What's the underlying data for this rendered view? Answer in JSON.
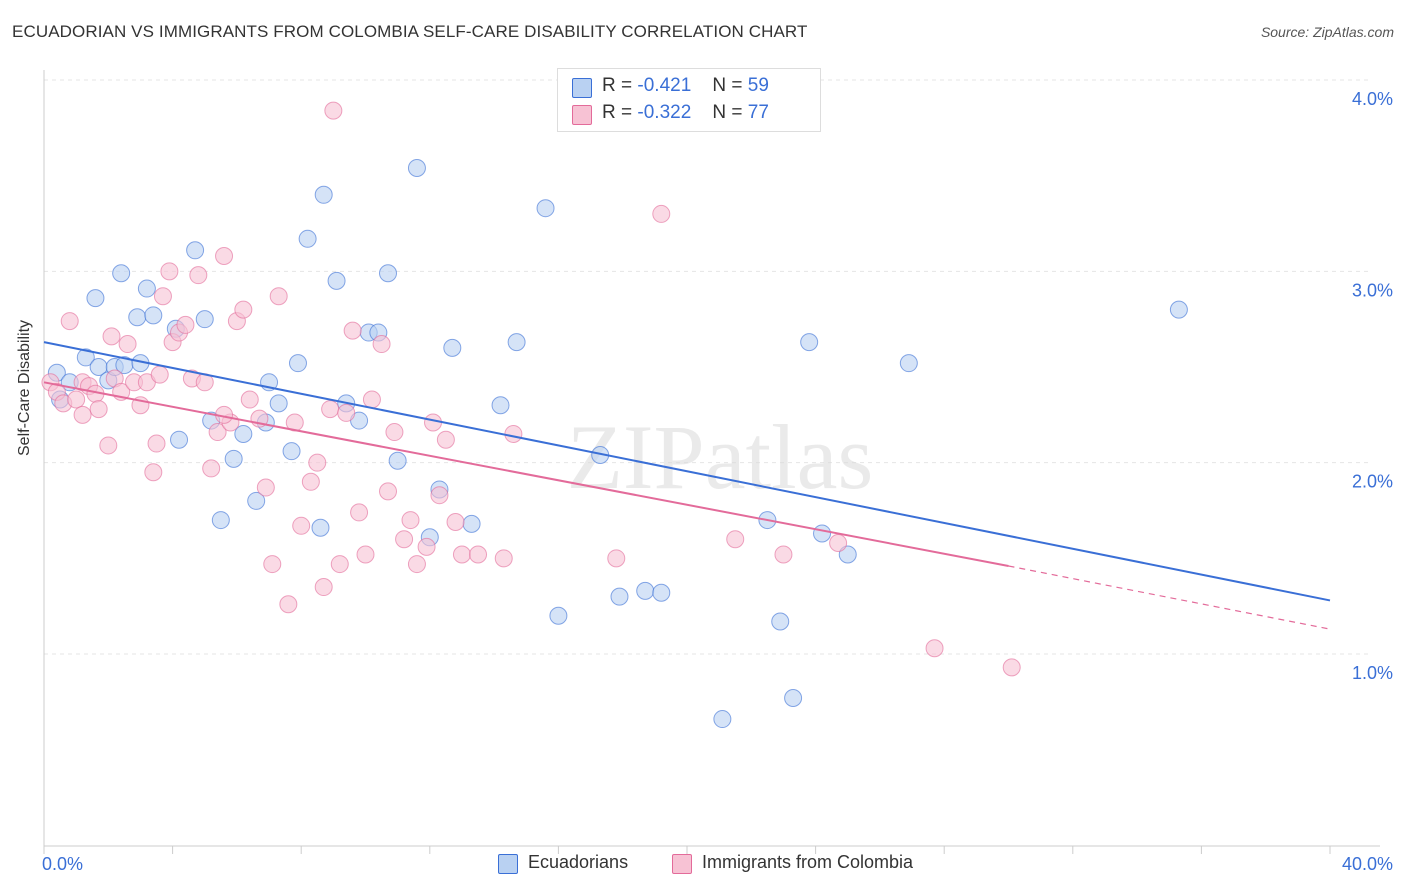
{
  "header": {
    "title": "ECUADORIAN VS IMMIGRANTS FROM COLOMBIA SELF-CARE DISABILITY CORRELATION CHART",
    "source": "Source: ZipAtlas.com"
  },
  "legend_top": {
    "rows": [
      {
        "r_label": "R =",
        "r_value": "-0.421",
        "n_label": "N =",
        "n_value": "59"
      },
      {
        "r_label": "R =",
        "r_value": "-0.322",
        "n_label": "N =",
        "n_value": "77"
      }
    ]
  },
  "colors": {
    "blue": "#3a6fd6",
    "blue_fill": "#b9d1f2",
    "pink": "#e36b9a",
    "pink_fill": "#f7c2d4",
    "tick_label": "#3a6fd6"
  },
  "chart_data": {
    "type": "scatter",
    "ylabel": "Self-Care Disability",
    "xlim": [
      0,
      40
    ],
    "ylim": [
      0,
      4.2
    ],
    "x_ticks": [
      0,
      40
    ],
    "x_tick_labels": [
      "0.0%",
      "40.0%"
    ],
    "y_ticks": [
      1,
      2,
      3,
      4
    ],
    "y_tick_labels": [
      "1.0%",
      "2.0%",
      "3.0%",
      "4.0%"
    ],
    "grid": true,
    "legend_position": "bottom",
    "watermark": "ZIPatlas",
    "series": [
      {
        "name": "Ecuadorians",
        "color": "#3a6fd6",
        "trend": {
          "x": [
            0,
            40
          ],
          "y": [
            2.63,
            1.28
          ]
        },
        "points": [
          [
            0.4,
            2.47
          ],
          [
            0.5,
            2.33
          ],
          [
            0.8,
            2.42
          ],
          [
            1.3,
            2.55
          ],
          [
            1.6,
            2.86
          ],
          [
            1.7,
            2.5
          ],
          [
            2.0,
            2.43
          ],
          [
            2.2,
            2.5
          ],
          [
            2.4,
            2.99
          ],
          [
            2.5,
            2.51
          ],
          [
            2.9,
            2.76
          ],
          [
            3.0,
            2.52
          ],
          [
            3.2,
            2.91
          ],
          [
            3.4,
            2.77
          ],
          [
            4.1,
            2.7
          ],
          [
            4.2,
            2.12
          ],
          [
            4.7,
            3.11
          ],
          [
            5.0,
            2.75
          ],
          [
            5.2,
            2.22
          ],
          [
            5.5,
            1.7
          ],
          [
            5.9,
            2.02
          ],
          [
            6.2,
            2.15
          ],
          [
            6.6,
            1.8
          ],
          [
            6.9,
            2.21
          ],
          [
            7.0,
            2.42
          ],
          [
            7.3,
            2.31
          ],
          [
            7.7,
            2.06
          ],
          [
            7.9,
            2.52
          ],
          [
            8.2,
            3.17
          ],
          [
            8.6,
            1.66
          ],
          [
            8.7,
            3.4
          ],
          [
            9.1,
            2.95
          ],
          [
            9.4,
            2.31
          ],
          [
            9.8,
            2.22
          ],
          [
            10.1,
            2.68
          ],
          [
            10.4,
            2.68
          ],
          [
            10.7,
            2.99
          ],
          [
            11.0,
            2.01
          ],
          [
            11.6,
            3.54
          ],
          [
            12.0,
            1.61
          ],
          [
            12.3,
            1.86
          ],
          [
            12.7,
            2.6
          ],
          [
            13.3,
            1.68
          ],
          [
            14.2,
            2.3
          ],
          [
            14.7,
            2.63
          ],
          [
            15.6,
            3.33
          ],
          [
            16.0,
            1.2
          ],
          [
            17.3,
            2.04
          ],
          [
            17.9,
            1.3
          ],
          [
            18.7,
            1.33
          ],
          [
            19.2,
            1.32
          ],
          [
            21.1,
            0.66
          ],
          [
            22.5,
            1.7
          ],
          [
            22.9,
            1.17
          ],
          [
            23.3,
            0.77
          ],
          [
            23.8,
            2.63
          ],
          [
            24.2,
            1.63
          ],
          [
            25.0,
            1.52
          ],
          [
            26.9,
            2.52
          ],
          [
            35.3,
            2.8
          ]
        ]
      },
      {
        "name": "Immigrants from Colombia",
        "color": "#e36b9a",
        "trend": {
          "x": [
            0,
            30
          ],
          "y": [
            2.42,
            1.46
          ]
        },
        "trend_dashed": {
          "x": [
            30,
            40
          ],
          "y": [
            1.46,
            1.13
          ]
        },
        "points": [
          [
            0.2,
            2.42
          ],
          [
            0.4,
            2.37
          ],
          [
            0.6,
            2.31
          ],
          [
            0.8,
            2.74
          ],
          [
            1.0,
            2.33
          ],
          [
            1.2,
            2.42
          ],
          [
            1.4,
            2.4
          ],
          [
            1.6,
            2.36
          ],
          [
            1.7,
            2.28
          ],
          [
            2.0,
            2.09
          ],
          [
            2.2,
            2.44
          ],
          [
            2.4,
            2.37
          ],
          [
            2.6,
            2.62
          ],
          [
            2.8,
            2.42
          ],
          [
            3.0,
            2.3
          ],
          [
            3.2,
            2.42
          ],
          [
            3.4,
            1.95
          ],
          [
            3.5,
            2.1
          ],
          [
            3.7,
            2.87
          ],
          [
            3.9,
            3.0
          ],
          [
            4.0,
            2.63
          ],
          [
            4.2,
            2.68
          ],
          [
            4.4,
            2.72
          ],
          [
            4.6,
            2.44
          ],
          [
            4.8,
            2.98
          ],
          [
            5.0,
            2.42
          ],
          [
            5.2,
            1.97
          ],
          [
            5.4,
            2.16
          ],
          [
            5.6,
            3.08
          ],
          [
            5.8,
            2.21
          ],
          [
            6.0,
            2.74
          ],
          [
            6.2,
            2.8
          ],
          [
            6.4,
            2.33
          ],
          [
            6.7,
            2.23
          ],
          [
            6.9,
            1.87
          ],
          [
            7.1,
            1.47
          ],
          [
            7.3,
            2.87
          ],
          [
            7.6,
            1.26
          ],
          [
            7.8,
            2.21
          ],
          [
            8.0,
            1.67
          ],
          [
            8.3,
            1.9
          ],
          [
            8.5,
            2.0
          ],
          [
            8.7,
            1.35
          ],
          [
            8.9,
            2.28
          ],
          [
            9.2,
            1.47
          ],
          [
            9.4,
            2.26
          ],
          [
            9.6,
            2.69
          ],
          [
            9.8,
            1.74
          ],
          [
            10.0,
            1.52
          ],
          [
            10.2,
            2.33
          ],
          [
            10.5,
            2.62
          ],
          [
            10.7,
            1.85
          ],
          [
            10.9,
            2.16
          ],
          [
            11.2,
            1.6
          ],
          [
            11.4,
            1.7
          ],
          [
            11.6,
            1.47
          ],
          [
            11.9,
            1.56
          ],
          [
            12.1,
            2.21
          ],
          [
            12.3,
            1.83
          ],
          [
            12.5,
            2.12
          ],
          [
            12.8,
            1.69
          ],
          [
            13.0,
            1.52
          ],
          [
            13.5,
            1.52
          ],
          [
            14.3,
            1.5
          ],
          [
            14.6,
            2.15
          ],
          [
            9.0,
            3.84
          ],
          [
            17.8,
            1.5
          ],
          [
            19.2,
            3.3
          ],
          [
            21.5,
            1.6
          ],
          [
            23.0,
            1.52
          ],
          [
            24.7,
            1.58
          ],
          [
            27.7,
            1.03
          ],
          [
            30.1,
            0.93
          ],
          [
            3.6,
            2.46
          ],
          [
            5.6,
            2.25
          ],
          [
            1.2,
            2.25
          ],
          [
            2.1,
            2.66
          ]
        ]
      }
    ]
  },
  "legend_bottom": {
    "items": [
      {
        "label": "Ecuadorians"
      },
      {
        "label": "Immigrants from Colombia"
      }
    ]
  }
}
